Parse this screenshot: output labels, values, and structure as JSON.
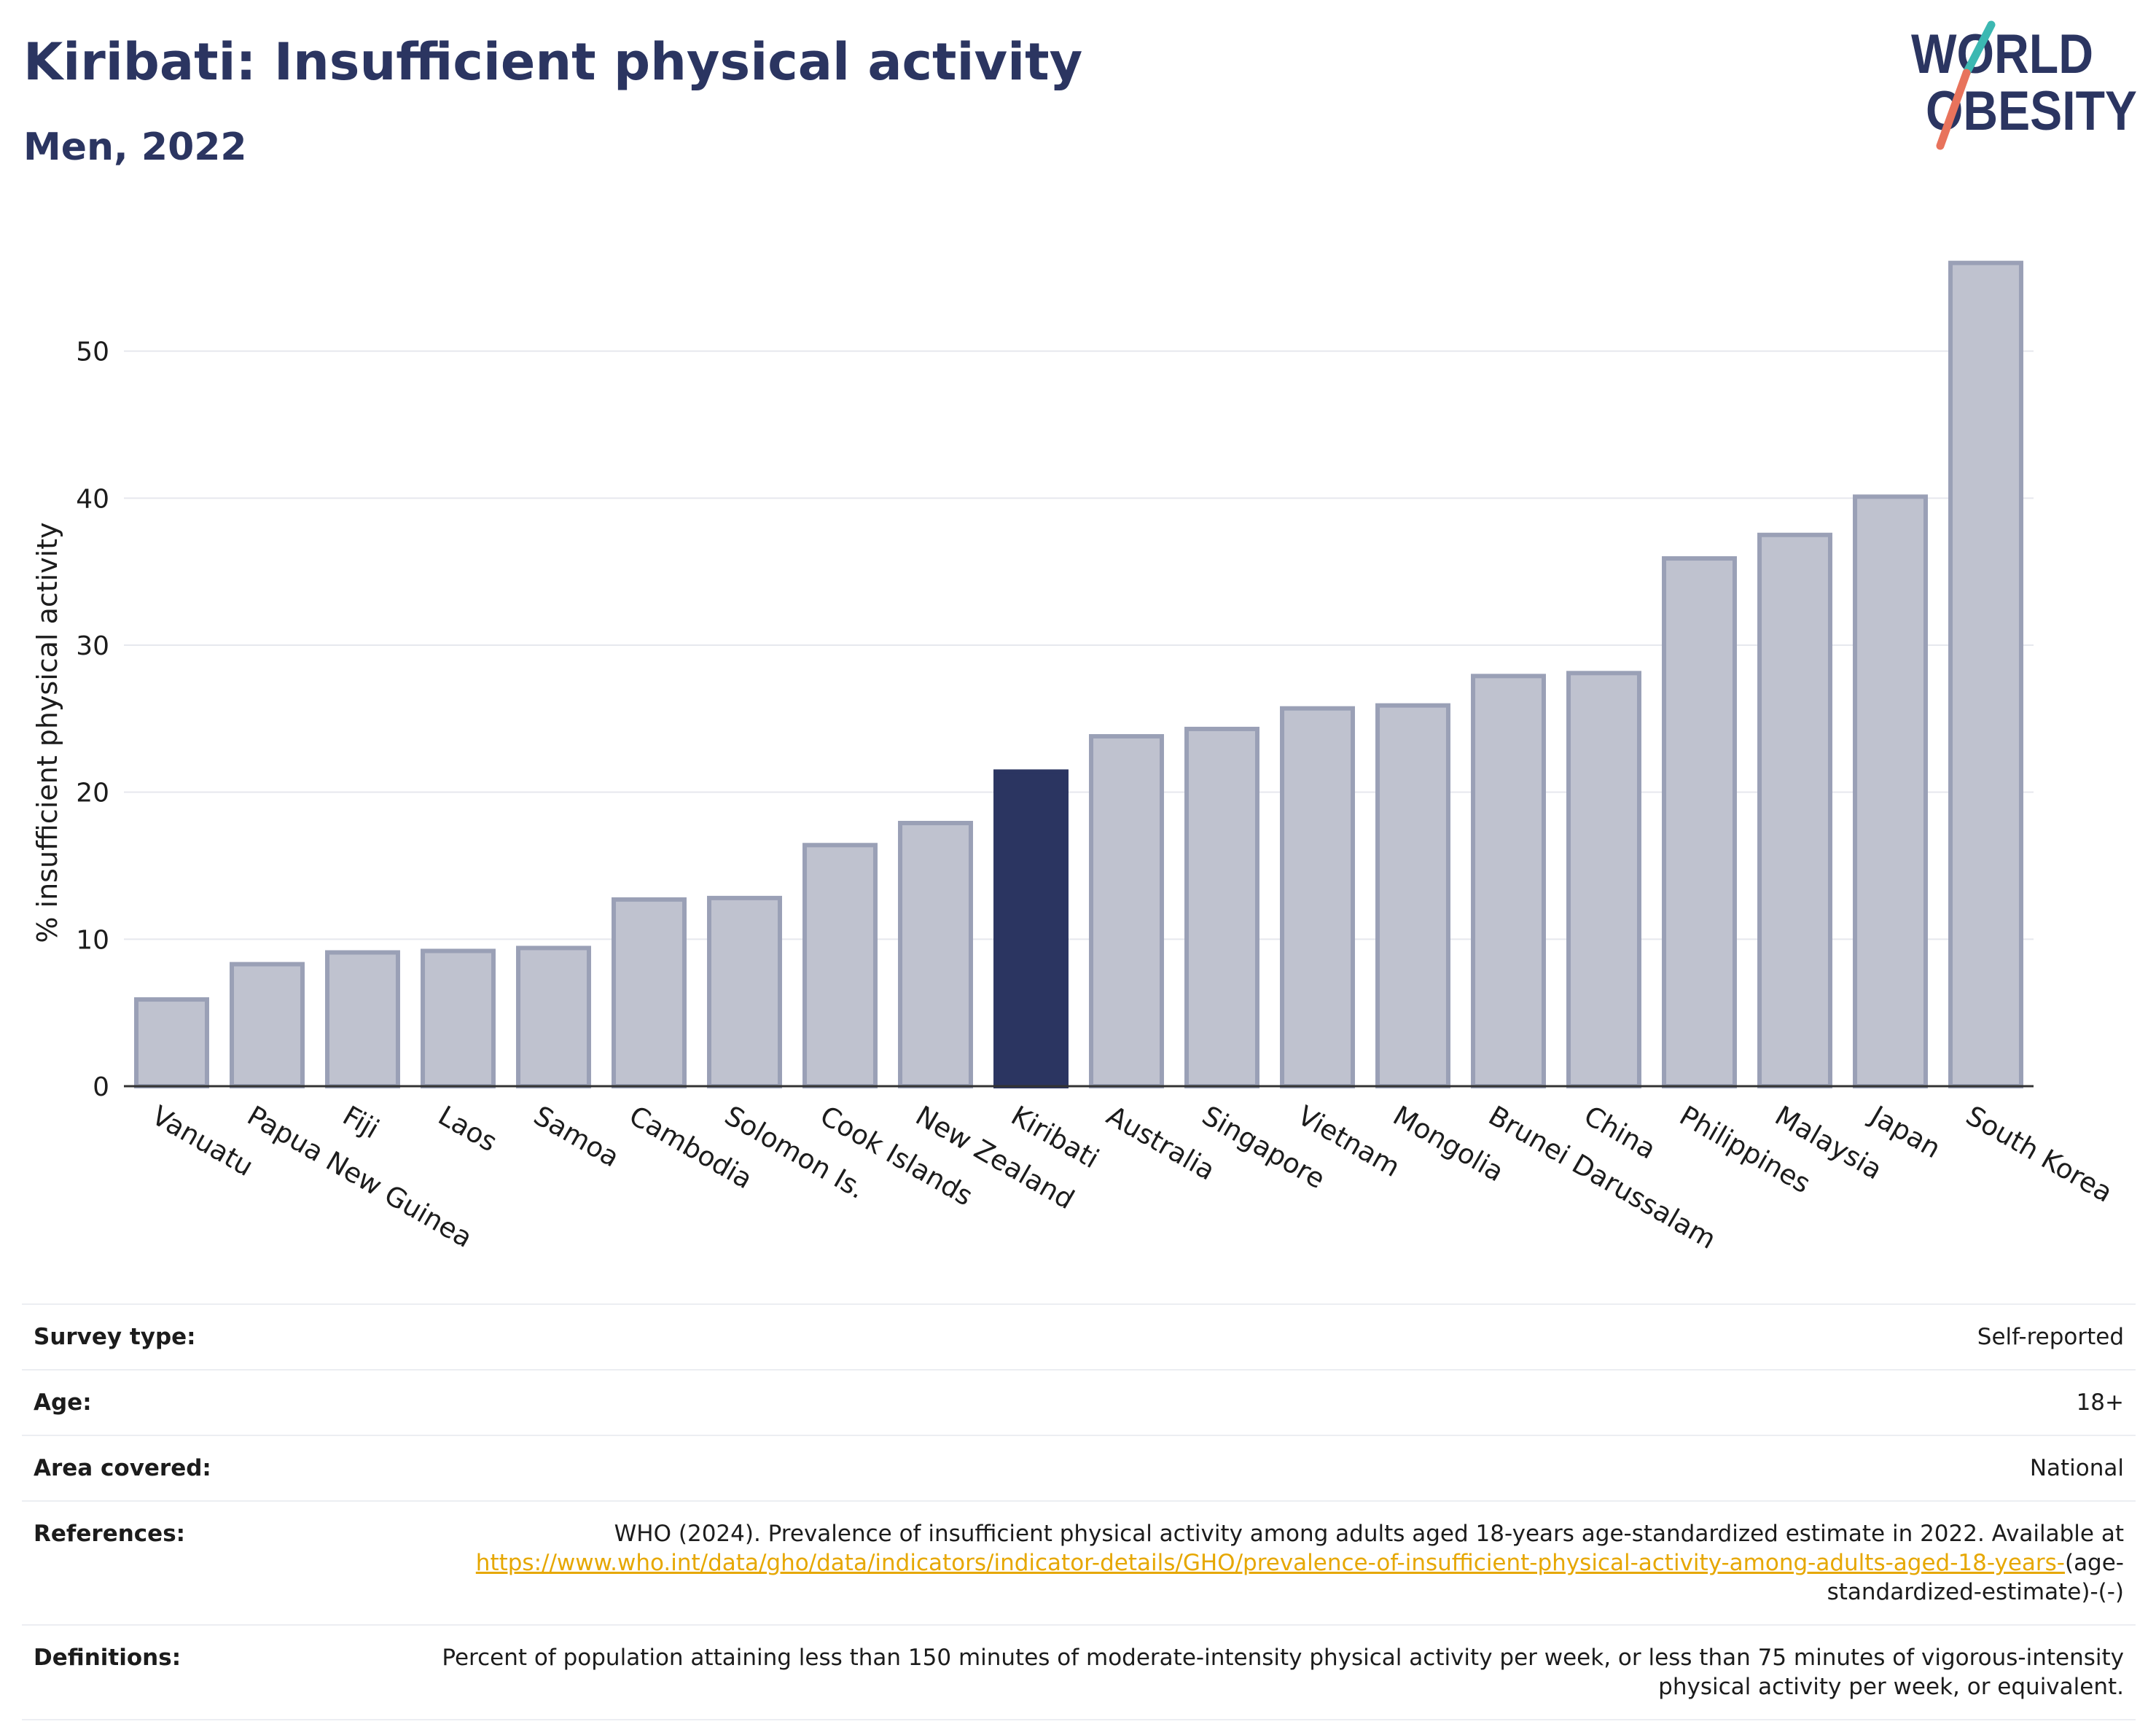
{
  "header": {
    "title": "Kiribati: Insufficient physical activity",
    "subtitle": "Men, 2022"
  },
  "logo": {
    "line1": "WORLD",
    "line2": "OBESITY",
    "colors": {
      "text": "#2b3561",
      "teal": "#3cb8b2",
      "coral": "#e8735c"
    }
  },
  "chart_data": {
    "type": "bar",
    "categories": [
      "Vanuatu",
      "Papua New Guinea",
      "Fiji",
      "Laos",
      "Samoa",
      "Cambodia",
      "Solomon Is.",
      "Cook Islands",
      "New Zealand",
      "Kiribati",
      "Australia",
      "Singapore",
      "Vietnam",
      "Mongolia",
      "Brunei Darussalam",
      "China",
      "Philippines",
      "Malaysia",
      "Japan",
      "South Korea"
    ],
    "values": [
      5.9,
      8.3,
      9.1,
      9.2,
      9.4,
      12.7,
      12.8,
      16.4,
      17.9,
      21.4,
      23.8,
      24.3,
      25.7,
      25.9,
      27.9,
      28.1,
      35.9,
      37.5,
      40.1,
      56.0
    ],
    "highlight": "Kiribati",
    "ylabel": "% insufficient physical activity",
    "xlabel": "",
    "ylim": [
      0,
      60
    ],
    "yticks": [
      0,
      10,
      20,
      30,
      40,
      50
    ],
    "grid": true,
    "colors": {
      "bar": "#bfc2cf",
      "bar_edge": "#9aa0b6",
      "highlight": "#2b3561",
      "grid": "#e6e8ee"
    }
  },
  "metadata": [
    {
      "label": "Survey type:",
      "value": "Self-reported"
    },
    {
      "label": "Age:",
      "value": "18+"
    },
    {
      "label": "Area covered:",
      "value": "National"
    },
    {
      "label": "References:",
      "value_before": "WHO (2024). Prevalence of insufficient physical activity among adults aged 18-years age-standardized estimate in 2022. Available at",
      "link": "https://www.who.int/data/gho/data/indicators/indicator-details/GHO/prevalence-of-insufficient-physical-activity-among-adults-aged-18-years-",
      "value_after": "(age-standardized-estimate)-(-)"
    },
    {
      "label": "Definitions:",
      "value": "Percent of population attaining less than 150 minutes of moderate-intensity physical activity per week, or less than 75 minutes of vigorous-intensity physical activity per week, or equivalent."
    }
  ]
}
